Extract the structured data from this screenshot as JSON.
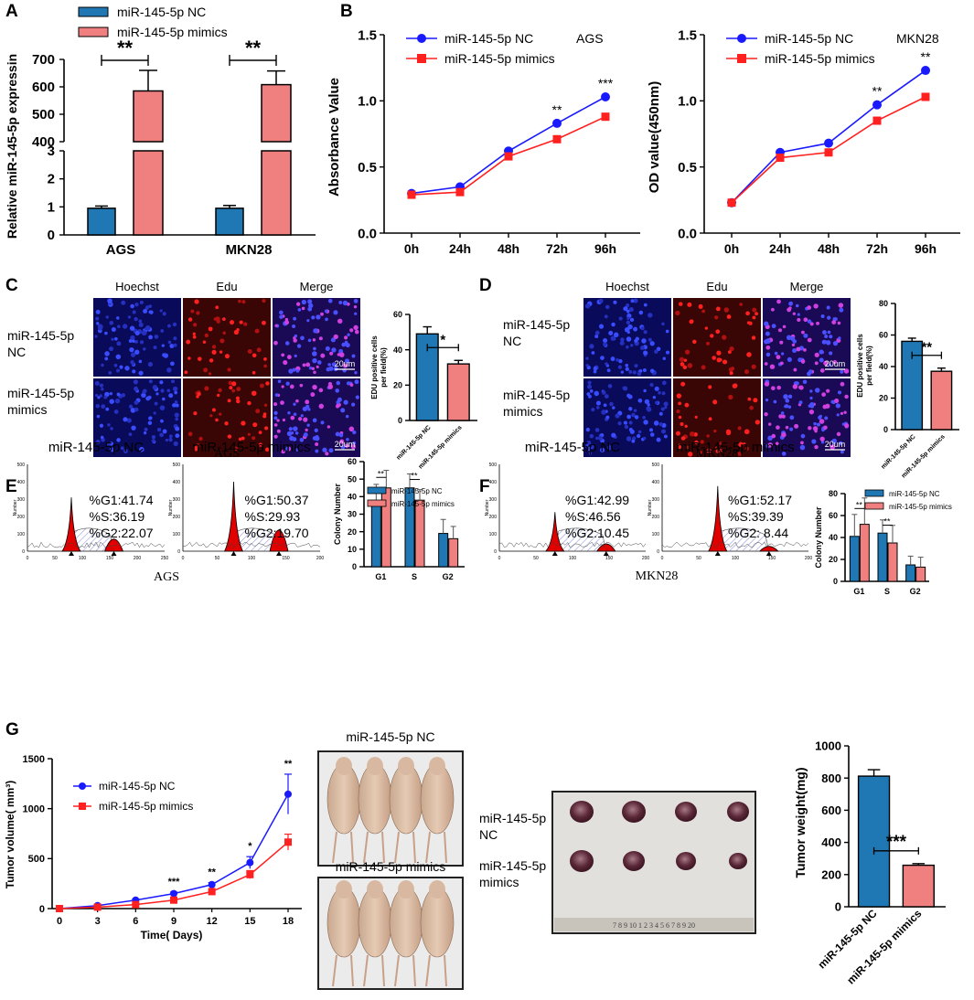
{
  "colors": {
    "nc": "#1f78b4",
    "mimics": "#f08080",
    "blue_line": "#1a1aff",
    "red_line": "#ff2020",
    "hist_fill": "#e00000",
    "axis": "#000000"
  },
  "icons": [
    "mouse-photo",
    "tumor-photo",
    "micrograph"
  ],
  "chart_data": [
    {
      "panel": "A",
      "type": "bar",
      "categories": [
        "AGS",
        "MKN28"
      ],
      "series": [
        {
          "name": "miR-145-5p NC",
          "values": [
            0.95,
            0.95
          ],
          "errors": [
            0.08,
            0.1
          ]
        },
        {
          "name": "miR-145-5p mimics",
          "values": [
            585,
            608
          ],
          "errors": [
            75,
            50
          ]
        }
      ],
      "ylabel": "Relative miR-145-5p expressin",
      "yticks_low": [
        "0",
        "1",
        "2",
        "3"
      ],
      "yticks_high": [
        "400",
        "500",
        "600",
        "700"
      ],
      "broken_axis": [
        3,
        400
      ],
      "significance": [
        "**",
        "**"
      ]
    },
    {
      "panel": "B-AGS",
      "type": "line",
      "x": [
        "0h",
        "24h",
        "48h",
        "72h",
        "96h"
      ],
      "series": [
        {
          "name": "miR-145-5p NC",
          "values": [
            0.3,
            0.35,
            0.62,
            0.83,
            1.03
          ]
        },
        {
          "name": "miR-145-5p mimics",
          "values": [
            0.29,
            0.31,
            0.58,
            0.71,
            0.88
          ]
        }
      ],
      "annotation": "AGS",
      "ylabel": "Absorbance Value",
      "ylim": [
        0,
        1.5
      ],
      "yticks": [
        "0.0",
        "0.5",
        "1.0",
        "1.5"
      ],
      "significance": [
        "",
        "",
        "",
        "**",
        "***"
      ]
    },
    {
      "panel": "B-MKN28",
      "type": "line",
      "x": [
        "0h",
        "24h",
        "48h",
        "72h",
        "96h"
      ],
      "series": [
        {
          "name": "miR-145-5p NC",
          "values": [
            0.23,
            0.61,
            0.68,
            0.97,
            1.23
          ]
        },
        {
          "name": "miR-145-5p mimics",
          "values": [
            0.23,
            0.57,
            0.61,
            0.85,
            1.03
          ]
        }
      ],
      "annotation": "MKN28",
      "ylabel": "OD value(450nm)",
      "ylim": [
        0,
        1.5
      ],
      "yticks": [
        "0.0",
        "0.5",
        "1.0",
        "1.5"
      ],
      "significance": [
        "",
        "",
        "",
        "**",
        "**"
      ]
    },
    {
      "panel": "C",
      "type": "bar",
      "categories": [
        "miR-145-5p NC",
        "miR-145-5p mimics"
      ],
      "values": [
        49,
        32
      ],
      "errors": [
        4,
        2
      ],
      "ylabel": "EDU positive cells per field(%)",
      "ylim": [
        0,
        60
      ],
      "yticks": [
        "0",
        "20",
        "40",
        "60"
      ],
      "significance": "*"
    },
    {
      "panel": "D",
      "type": "bar",
      "categories": [
        "miR-145-5p NC",
        "miR-145-5p mimics"
      ],
      "values": [
        56,
        37
      ],
      "errors": [
        2,
        2
      ],
      "ylabel": "EDU positive cells per field(%)",
      "ylim": [
        0,
        80
      ],
      "yticks": [
        "0",
        "20",
        "40",
        "60",
        "80"
      ],
      "significance": "**"
    },
    {
      "panel": "E",
      "type": "bar",
      "categories": [
        "G1",
        "S",
        "G2"
      ],
      "series": [
        {
          "name": "miR-145-5p NC",
          "values": [
            36,
            45,
            19
          ],
          "errors": [
            11,
            8,
            8
          ]
        },
        {
          "name": "miR-145-5p mimics",
          "values": [
            45,
            38,
            16
          ],
          "errors": [
            10,
            6,
            7
          ]
        }
      ],
      "ylabel": "Colony Number",
      "ylim": [
        0,
        60
      ],
      "yticks": [
        "0",
        "10",
        "20",
        "30",
        "40",
        "50",
        "60"
      ],
      "significance": [
        "**",
        "**",
        ""
      ]
    },
    {
      "panel": "F",
      "type": "bar",
      "categories": [
        "G1",
        "S",
        "G2"
      ],
      "series": [
        {
          "name": "miR-145-5p NC",
          "values": [
            41,
            44,
            15
          ],
          "errors": [
            20,
            12,
            8
          ]
        },
        {
          "name": "miR-145-5p mimics",
          "values": [
            52,
            35,
            13
          ],
          "errors": [
            24,
            16,
            9
          ]
        }
      ],
      "ylabel": "Colony Number",
      "ylim": [
        0,
        80
      ],
      "yticks": [
        "0",
        "20",
        "40",
        "60",
        "80"
      ],
      "significance": [
        "**",
        "**",
        ""
      ]
    },
    {
      "panel": "G-volume",
      "type": "line",
      "x": [
        0,
        3,
        6,
        9,
        12,
        15,
        18
      ],
      "series": [
        {
          "name": "miR-145-5p NC",
          "values": [
            0,
            30,
            85,
            150,
            240,
            460,
            1145
          ],
          "errors": [
            0,
            5,
            10,
            15,
            20,
            60,
            200
          ]
        },
        {
          "name": "miR-145-5p mimics",
          "values": [
            0,
            15,
            40,
            85,
            170,
            340,
            665
          ],
          "errors": [
            0,
            5,
            8,
            10,
            15,
            40,
            80
          ]
        }
      ],
      "xlabel": "Time( Days)",
      "ylabel": "Tumor volume( mm³)",
      "ylim": [
        0,
        1500
      ],
      "yticks": [
        "0",
        "500",
        "1000",
        "1500"
      ],
      "xticks": [
        "0",
        "3",
        "6",
        "9",
        "12",
        "15",
        "18"
      ],
      "significance": [
        "",
        "",
        "",
        "***",
        "**",
        "*",
        "**"
      ]
    },
    {
      "panel": "G-weight",
      "type": "bar",
      "categories": [
        "miR-145-5p NC",
        "miR-145-5p mimics"
      ],
      "values": [
        812,
        258
      ],
      "errors": [
        40,
        10
      ],
      "ylabel": "Tumor weight(mg)",
      "ylim": [
        0,
        1000
      ],
      "yticks": [
        "0",
        "200",
        "400",
        "600",
        "800",
        "1000"
      ],
      "significance": "***"
    }
  ],
  "panels": {
    "labels": [
      "A",
      "B",
      "C",
      "D",
      "E",
      "F",
      "G"
    ],
    "C": {
      "cols": [
        "Hoechst",
        "Edu",
        "Merge"
      ],
      "rows": [
        "miR-145-5p\nNC",
        "miR-145-5p\nmimics"
      ],
      "scale": "20um",
      "caption": "AGS"
    },
    "D": {
      "cols": [
        "Hoechst",
        "Edu",
        "Merge"
      ],
      "rows": [
        "miR-145-5p\nNC",
        "miR-145-5p\nmimics"
      ],
      "scale": "20um",
      "caption": "MKN28"
    },
    "E": {
      "titles": [
        "miR-145-5p NC",
        "miR-145-5p mimics"
      ],
      "stats": [
        [
          "%G1:41.74",
          "%S:36.19",
          "%G2:22.07"
        ],
        [
          "%G1:50.37",
          "%S:29.93",
          "%G2:19.70"
        ]
      ],
      "caption": "AGS",
      "hist_ylabel": "Number",
      "hist_xticks": [
        "0",
        "50",
        "100",
        "150",
        "200",
        "250"
      ],
      "hist_yticks": [
        "0",
        "100",
        "200",
        "300",
        "400",
        "500"
      ]
    },
    "F": {
      "titles": [
        "miR-145-5p NC",
        "miR-145-5p mimics"
      ],
      "stats": [
        [
          "%G1:42.99",
          "%S:46.56",
          "%G2:10.45"
        ],
        [
          "%G1:52.17",
          "%S:39.39",
          "%G2: 8.44"
        ]
      ],
      "caption": "MKN28",
      "hist_ylabel": "Number",
      "hist_xticks": [
        "0",
        "50",
        "100",
        "150",
        "200"
      ],
      "hist_yticks": [
        "0",
        "100",
        "200",
        "300",
        "400",
        "500"
      ]
    },
    "G": {
      "photo_titles": [
        "miR-145-5p NC",
        "miR-145-5p mimics"
      ],
      "tumor_rows": [
        "miR-145-5p\nNC",
        "miR-145-5p\nmimics"
      ],
      "ruler": "7 8 9 10 1 2 3 4 5 6 7 8 9 20"
    }
  }
}
